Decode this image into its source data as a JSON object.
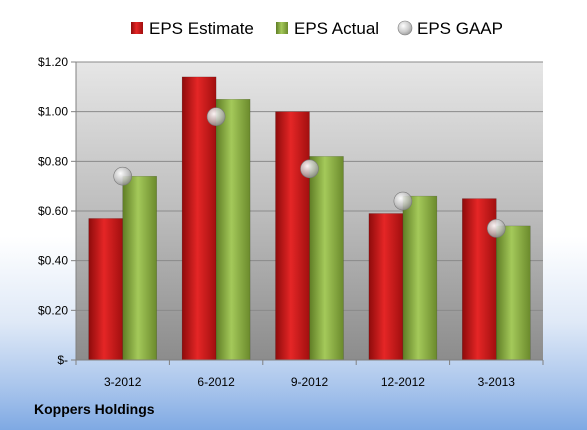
{
  "chart_data": {
    "type": "bar",
    "categories": [
      "3-2012",
      "6-2012",
      "9-2012",
      "12-2012",
      "3-2013"
    ],
    "series": [
      {
        "name": "EPS Estimate",
        "kind": "bar",
        "color": "#cc1111",
        "values": [
          0.57,
          1.14,
          1.0,
          0.59,
          0.65
        ]
      },
      {
        "name": "EPS Actual",
        "kind": "bar",
        "color": "#8db23f",
        "values": [
          0.74,
          1.05,
          0.82,
          0.66,
          0.54
        ]
      },
      {
        "name": "EPS GAAP",
        "kind": "marker",
        "color": "#b8b8b8",
        "values": [
          0.74,
          0.98,
          0.77,
          0.64,
          0.53
        ]
      }
    ],
    "ylim": [
      0,
      1.2
    ],
    "yticks": [
      "$-",
      "$0.20",
      "$0.40",
      "$0.60",
      "$0.80",
      "$1.00",
      "$1.20"
    ],
    "grid": true,
    "legend": "top"
  },
  "footer": {
    "company": "Koppers Holdings"
  }
}
